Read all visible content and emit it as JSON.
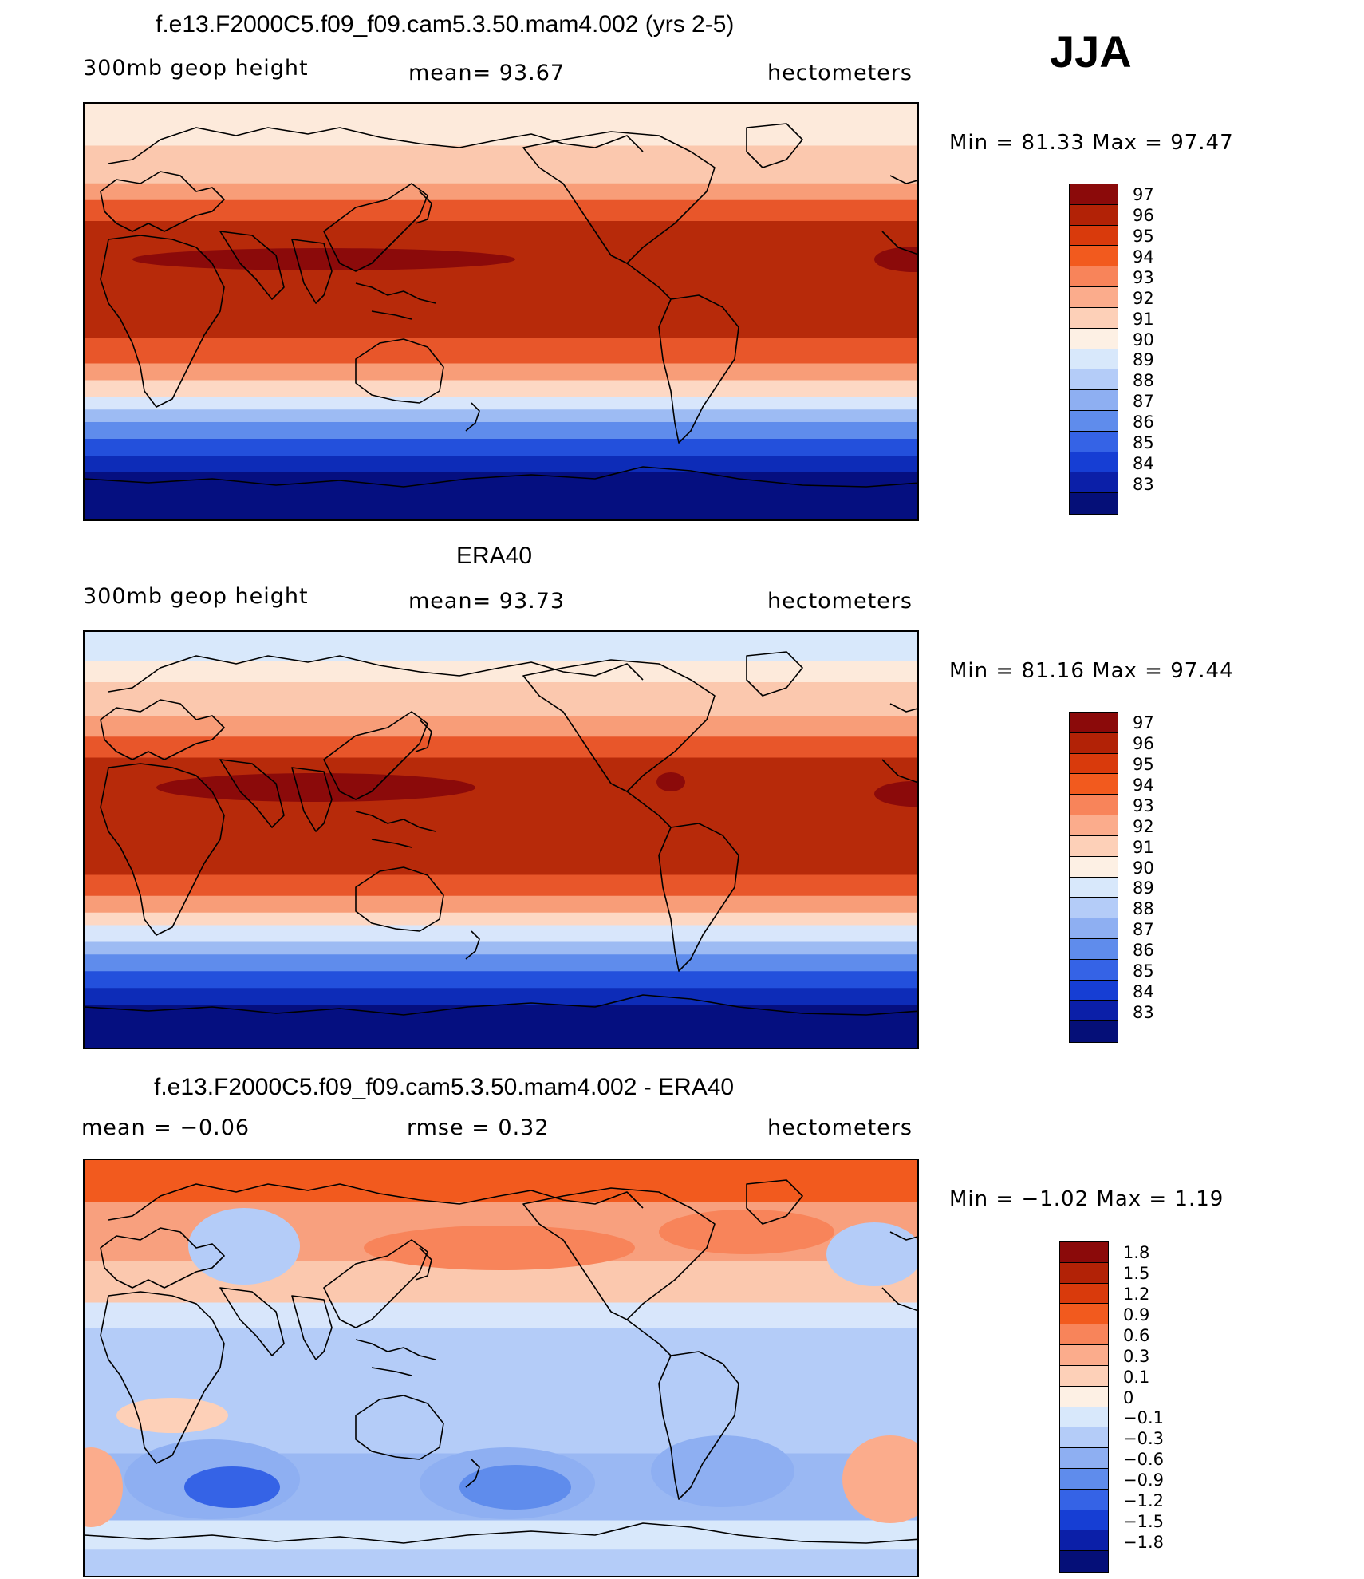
{
  "season": "JJA",
  "panels": [
    {
      "title": "f.e13.F2000C5.f09_f09.cam5.3.50.mam4.002 (yrs 2-5)",
      "left_label": "300mb  geop  height",
      "center_label": "mean=   93.67",
      "right_label": "hectometers",
      "minmax": "Min  =    81.33  Max  =    97.47",
      "colorbar": {
        "labels": [
          "97",
          "96",
          "95",
          "94",
          "93",
          "92",
          "91",
          "90",
          "89",
          "88",
          "87",
          "86",
          "85",
          "84",
          "83"
        ],
        "colors": [
          "#8b0a0a",
          "#b22206",
          "#d93a0c",
          "#f25a1e",
          "#f8845a",
          "#fbac8c",
          "#fdd0b8",
          "#fdf0e4",
          "#d8e8fb",
          "#b4ccf8",
          "#8eaff2",
          "#5f8cec",
          "#3563e6",
          "#163ed4",
          "#0b1fa8",
          "#050f78"
        ]
      },
      "field": {
        "bands": [
          {
            "frac": 0.1,
            "color": "#fdeadb"
          },
          {
            "frac": 0.19,
            "color": "#fbc8ae"
          },
          {
            "frac": 0.23,
            "color": "#f89d78"
          },
          {
            "frac": 0.28,
            "color": "#e8562a"
          },
          {
            "frac": 0.48,
            "color": "#b72a0a"
          },
          {
            "frac": 0.56,
            "color": "#b72a0a"
          },
          {
            "frac": 0.62,
            "color": "#e8562a"
          },
          {
            "frac": 0.66,
            "color": "#f89d78"
          },
          {
            "frac": 0.7,
            "color": "#fdd8c4"
          },
          {
            "frac": 0.73,
            "color": "#d8e6fb"
          },
          {
            "frac": 0.76,
            "color": "#9dbbf3"
          },
          {
            "frac": 0.8,
            "color": "#5f8cec"
          },
          {
            "frac": 0.84,
            "color": "#2350dc"
          },
          {
            "frac": 0.88,
            "color": "#0d2cb8"
          },
          {
            "frac": 1.0,
            "color": "#050f80"
          }
        ],
        "core_color": "#8b0a0a"
      }
    },
    {
      "title": "ERA40",
      "left_label": "300mb  geop  height",
      "center_label": "mean=   93.73",
      "right_label": "hectometers",
      "minmax": "Min  =    81.16  Max  =    97.44",
      "colorbar": {
        "labels": [
          "97",
          "96",
          "95",
          "94",
          "93",
          "92",
          "91",
          "90",
          "89",
          "88",
          "87",
          "86",
          "85",
          "84",
          "83"
        ],
        "colors": [
          "#8b0a0a",
          "#b22206",
          "#d93a0c",
          "#f25a1e",
          "#f8845a",
          "#fbac8c",
          "#fdd0b8",
          "#fdf0e4",
          "#d8e8fb",
          "#b4ccf8",
          "#8eaff2",
          "#5f8cec",
          "#3563e6",
          "#163ed4",
          "#0b1fa8",
          "#050f78"
        ]
      },
      "field": {
        "bands": [
          {
            "frac": 0.07,
            "color": "#d8e8fb"
          },
          {
            "frac": 0.12,
            "color": "#fdeadb"
          },
          {
            "frac": 0.2,
            "color": "#fbc8ae"
          },
          {
            "frac": 0.25,
            "color": "#f89d78"
          },
          {
            "frac": 0.3,
            "color": "#e8562a"
          },
          {
            "frac": 0.5,
            "color": "#b72a0a"
          },
          {
            "frac": 0.58,
            "color": "#b72a0a"
          },
          {
            "frac": 0.63,
            "color": "#e8562a"
          },
          {
            "frac": 0.67,
            "color": "#f89d78"
          },
          {
            "frac": 0.7,
            "color": "#fdd8c4"
          },
          {
            "frac": 0.74,
            "color": "#d8e6fb"
          },
          {
            "frac": 0.77,
            "color": "#9dbbf3"
          },
          {
            "frac": 0.81,
            "color": "#5f8cec"
          },
          {
            "frac": 0.85,
            "color": "#2350dc"
          },
          {
            "frac": 0.89,
            "color": "#0d2cb8"
          },
          {
            "frac": 1.0,
            "color": "#050f80"
          }
        ],
        "core_color": "#8b0a0a"
      }
    },
    {
      "title": "f.e13.F2000C5.f09_f09.cam5.3.50.mam4.002 - ERA40",
      "left_label": "mean  =     −0.06",
      "center_label": "rmse  =      0.32",
      "right_label": "hectometers",
      "minmax": "Min  =    −1.02  Max  =       1.19",
      "colorbar": {
        "labels": [
          "1.8",
          "1.5",
          "1.2",
          "0.9",
          "0.6",
          "0.3",
          "0.1",
          "0",
          "−0.1",
          "−0.3",
          "−0.6",
          "−0.9",
          "−1.2",
          "−1.5",
          "−1.8"
        ],
        "colors": [
          "#8b0a0a",
          "#b22206",
          "#d93a0c",
          "#f25a1e",
          "#f8845a",
          "#fbac8c",
          "#fdd0b8",
          "#fdf0e4",
          "#d8e8fb",
          "#b4ccf8",
          "#8eaff2",
          "#5f8cec",
          "#3563e6",
          "#163ed4",
          "#0b1fa8",
          "#050f78"
        ]
      },
      "field": {
        "bands": [
          {
            "frac": 0.1,
            "color": "#f25a1e"
          },
          {
            "frac": 0.24,
            "color": "#f8a07e"
          },
          {
            "frac": 0.34,
            "color": "#fbc8ae"
          },
          {
            "frac": 0.4,
            "color": "#d8e6fb"
          },
          {
            "frac": 0.7,
            "color": "#b4ccf8"
          },
          {
            "frac": 0.86,
            "color": "#9ab8f3"
          },
          {
            "frac": 0.93,
            "color": "#d8e8fb"
          },
          {
            "frac": 1.0,
            "color": "#b4ccf8"
          }
        ],
        "core_color": "#3563e6"
      }
    }
  ]
}
